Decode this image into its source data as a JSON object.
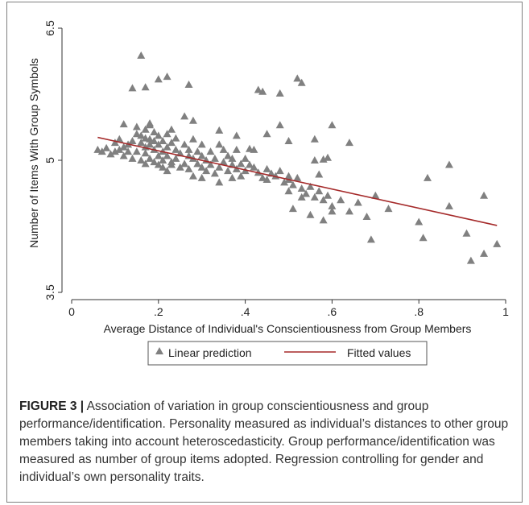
{
  "caption": {
    "label": "FIGURE 3 |",
    "text": " Association of variation in group conscientiousness and group performance/identification. Personality measured as individual’s distances to other group members taking into account heteroscedasticity. Group performance/identification was measured as number of group items adopted. Regression controlling for gender and individual’s own personality traits."
  },
  "chart_data": {
    "type": "scatter",
    "title": "",
    "xlabel": "Average Distance of Individual's Conscientiousness from Group Members",
    "ylabel": "Number of Items With Group Symbols",
    "xlim": [
      0,
      1
    ],
    "ylim": [
      3.5,
      6.5
    ],
    "xticks": [
      0,
      0.2,
      0.4,
      0.6,
      0.8,
      1
    ],
    "xtick_labels": [
      "0",
      ".2",
      ".4",
      ".6",
      ".8",
      "1"
    ],
    "yticks": [
      3.5,
      5,
      6.5
    ],
    "ytick_labels": [
      "3.5",
      "5",
      "6.5"
    ],
    "grid": false,
    "legend": {
      "placement": "bottom-center"
    },
    "colors": {
      "points": "#808080",
      "line": "#a52a2a"
    },
    "series": [
      {
        "name": "Linear prediction",
        "kind": "scatter",
        "marker": "triangle",
        "points": [
          [
            0.06,
            5.12
          ],
          [
            0.07,
            5.1
          ],
          [
            0.08,
            5.14
          ],
          [
            0.09,
            5.07
          ],
          [
            0.1,
            5.2
          ],
          [
            0.1,
            5.1
          ],
          [
            0.11,
            5.24
          ],
          [
            0.11,
            5.12
          ],
          [
            0.12,
            5.05
          ],
          [
            0.12,
            5.15
          ],
          [
            0.13,
            5.1
          ],
          [
            0.13,
            5.18
          ],
          [
            0.14,
            5.02
          ],
          [
            0.14,
            5.22
          ],
          [
            0.15,
            5.3
          ],
          [
            0.15,
            5.1
          ],
          [
            0.15,
            5.38
          ],
          [
            0.16,
            5.0
          ],
          [
            0.16,
            5.2
          ],
          [
            0.16,
            5.28
          ],
          [
            0.17,
            5.25
          ],
          [
            0.17,
            5.15
          ],
          [
            0.17,
            5.08
          ],
          [
            0.17,
            4.96
          ],
          [
            0.17,
            5.35
          ],
          [
            0.18,
            5.18
          ],
          [
            0.18,
            5.02
          ],
          [
            0.18,
            5.24
          ],
          [
            0.18,
            5.4
          ],
          [
            0.19,
            5.32
          ],
          [
            0.19,
            5.12
          ],
          [
            0.19,
            4.98
          ],
          [
            0.19,
            5.22
          ],
          [
            0.2,
            5.18
          ],
          [
            0.2,
            5.05
          ],
          [
            0.2,
            5.28
          ],
          [
            0.2,
            4.95
          ],
          [
            0.21,
            5.1
          ],
          [
            0.21,
            5.0
          ],
          [
            0.21,
            5.22
          ],
          [
            0.21,
            4.92
          ],
          [
            0.22,
            5.15
          ],
          [
            0.22,
            5.05
          ],
          [
            0.22,
            4.88
          ],
          [
            0.22,
            5.3
          ],
          [
            0.23,
            5.2
          ],
          [
            0.23,
            4.98
          ],
          [
            0.23,
            5.35
          ],
          [
            0.23,
            4.95
          ],
          [
            0.24,
            5.12
          ],
          [
            0.24,
            5.02
          ],
          [
            0.24,
            5.25
          ],
          [
            0.25,
            5.08
          ],
          [
            0.25,
            4.92
          ],
          [
            0.26,
            5.18
          ],
          [
            0.26,
            4.96
          ],
          [
            0.27,
            5.05
          ],
          [
            0.27,
            5.12
          ],
          [
            0.27,
            4.9
          ],
          [
            0.28,
            5.02
          ],
          [
            0.28,
            5.24
          ],
          [
            0.28,
            4.82
          ],
          [
            0.29,
            5.1
          ],
          [
            0.29,
            4.96
          ],
          [
            0.3,
            5.05
          ],
          [
            0.3,
            5.18
          ],
          [
            0.3,
            4.92
          ],
          [
            0.3,
            4.8
          ],
          [
            0.31,
            5.0
          ],
          [
            0.31,
            4.88
          ],
          [
            0.32,
            5.1
          ],
          [
            0.32,
            4.95
          ],
          [
            0.33,
            5.02
          ],
          [
            0.33,
            4.85
          ],
          [
            0.34,
            5.18
          ],
          [
            0.34,
            4.92
          ],
          [
            0.34,
            4.75
          ],
          [
            0.35,
            5.12
          ],
          [
            0.35,
            4.98
          ],
          [
            0.36,
            5.05
          ],
          [
            0.36,
            4.88
          ],
          [
            0.37,
            5.02
          ],
          [
            0.37,
            4.95
          ],
          [
            0.37,
            4.8
          ],
          [
            0.38,
            5.12
          ],
          [
            0.38,
            4.9
          ],
          [
            0.39,
            4.96
          ],
          [
            0.39,
            4.82
          ],
          [
            0.4,
            5.02
          ],
          [
            0.4,
            4.88
          ],
          [
            0.41,
            4.95
          ],
          [
            0.42,
            5.12
          ],
          [
            0.42,
            4.92
          ],
          [
            0.43,
            4.86
          ],
          [
            0.44,
            4.8
          ],
          [
            0.45,
            4.9
          ],
          [
            0.45,
            4.78
          ],
          [
            0.46,
            4.85
          ],
          [
            0.47,
            4.82
          ],
          [
            0.48,
            4.88
          ],
          [
            0.49,
            4.75
          ],
          [
            0.5,
            4.82
          ],
          [
            0.5,
            4.78
          ],
          [
            0.51,
            4.72
          ],
          [
            0.52,
            4.8
          ],
          [
            0.53,
            4.68
          ],
          [
            0.54,
            4.62
          ],
          [
            0.55,
            4.7
          ],
          [
            0.56,
            4.58
          ],
          [
            0.57,
            4.65
          ],
          [
            0.58,
            4.55
          ],
          [
            0.59,
            4.6
          ],
          [
            0.6,
            4.48
          ],
          [
            0.62,
            4.55
          ],
          [
            0.14,
            5.82
          ],
          [
            0.16,
            6.19
          ],
          [
            0.17,
            5.83
          ],
          [
            0.12,
            5.41
          ],
          [
            0.18,
            5.42
          ],
          [
            0.26,
            5.5
          ],
          [
            0.28,
            5.45
          ],
          [
            0.34,
            5.34
          ],
          [
            0.38,
            5.28
          ],
          [
            0.41,
            5.13
          ],
          [
            0.45,
            5.3
          ],
          [
            0.5,
            5.22
          ],
          [
            0.48,
            5.4
          ],
          [
            0.56,
            5.24
          ],
          [
            0.6,
            5.4
          ],
          [
            0.64,
            5.2
          ],
          [
            0.2,
            5.92
          ],
          [
            0.22,
            5.95
          ],
          [
            0.27,
            5.86
          ],
          [
            0.43,
            5.8
          ],
          [
            0.44,
            5.78
          ],
          [
            0.48,
            5.76
          ],
          [
            0.52,
            5.93
          ],
          [
            0.53,
            5.88
          ],
          [
            0.56,
            5.0
          ],
          [
            0.58,
            5.01
          ],
          [
            0.59,
            5.03
          ],
          [
            0.57,
            4.84
          ],
          [
            0.5,
            4.65
          ],
          [
            0.53,
            4.58
          ],
          [
            0.51,
            4.45
          ],
          [
            0.55,
            4.38
          ],
          [
            0.58,
            4.32
          ],
          [
            0.6,
            4.42
          ],
          [
            0.64,
            4.42
          ],
          [
            0.66,
            4.52
          ],
          [
            0.68,
            4.36
          ],
          [
            0.7,
            4.6
          ],
          [
            0.73,
            4.45
          ],
          [
            0.69,
            4.1
          ],
          [
            0.8,
            4.3
          ],
          [
            0.81,
            4.12
          ],
          [
            0.82,
            4.8
          ],
          [
            0.87,
            4.95
          ],
          [
            0.87,
            4.48
          ],
          [
            0.91,
            4.17
          ],
          [
            0.92,
            3.86
          ],
          [
            0.95,
            3.94
          ],
          [
            0.95,
            4.6
          ],
          [
            0.98,
            4.05
          ]
        ]
      },
      {
        "name": "Fitted values",
        "kind": "line",
        "points": [
          [
            0.06,
            5.26
          ],
          [
            0.98,
            4.26
          ]
        ]
      }
    ]
  }
}
